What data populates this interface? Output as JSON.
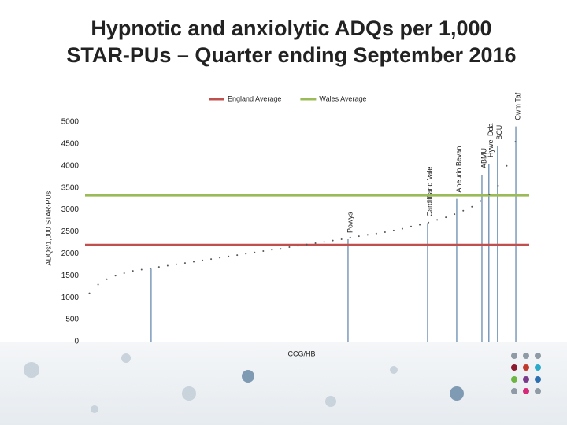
{
  "chart_data": {
    "type": "scatter",
    "title_lines": [
      "Hypnotic and anxiolytic ADQs per 1,000",
      "STAR-PUs – Quarter ending September 2016"
    ],
    "y_label": "ADQs/1,000 STAR-PUs",
    "x_label": "CCG/HB",
    "ylim": [
      0,
      5000
    ],
    "yticks": [
      0,
      500,
      1000,
      1500,
      2000,
      2500,
      3000,
      3500,
      4000,
      4500,
      5000
    ],
    "xlim": [
      0,
      100
    ],
    "grid": false,
    "point_color": "#555555",
    "x": [
      1,
      3,
      5,
      7,
      9,
      11,
      13,
      15,
      17,
      19,
      21,
      23,
      25,
      27,
      29,
      31,
      33,
      35,
      37,
      39,
      41,
      43,
      45,
      47,
      49,
      51,
      53,
      55,
      57,
      59,
      61,
      63,
      65,
      67,
      69,
      71,
      73,
      75,
      77,
      79,
      81,
      83,
      85,
      87,
      89,
      91,
      93,
      95,
      97,
      99
    ],
    "values": [
      1100,
      1300,
      1420,
      1500,
      1560,
      1610,
      1640,
      1670,
      1700,
      1730,
      1760,
      1790,
      1820,
      1850,
      1880,
      1910,
      1940,
      1970,
      2000,
      2030,
      2060,
      2090,
      2110,
      2150,
      2180,
      2210,
      2240,
      2270,
      2300,
      2330,
      2370,
      2400,
      2430,
      2460,
      2490,
      2530,
      2570,
      2620,
      2660,
      2710,
      2770,
      2830,
      2900,
      2980,
      3070,
      3200,
      3350,
      3550,
      4000,
      4550
    ],
    "health_boards": {
      "color": "#5b82aa",
      "labels": [
        null,
        "Powys",
        "Cardiff and Vale",
        "Aneurin Bevan",
        "ABMU",
        "Hywel Dda",
        "BCU",
        "Cwm Taf"
      ],
      "x": [
        15.2,
        60.5,
        78.8,
        85.5,
        91.3,
        92.9,
        94.9,
        99.1
      ],
      "values": [
        1660,
        2330,
        2700,
        3250,
        3800,
        4050,
        4450,
        4900
      ]
    },
    "reference_lines": [
      {
        "name": "England Average",
        "color": "#c0504d",
        "value": 2200
      },
      {
        "name": "Wales Average",
        "color": "#9bbb59",
        "value": 3330
      }
    ]
  }
}
